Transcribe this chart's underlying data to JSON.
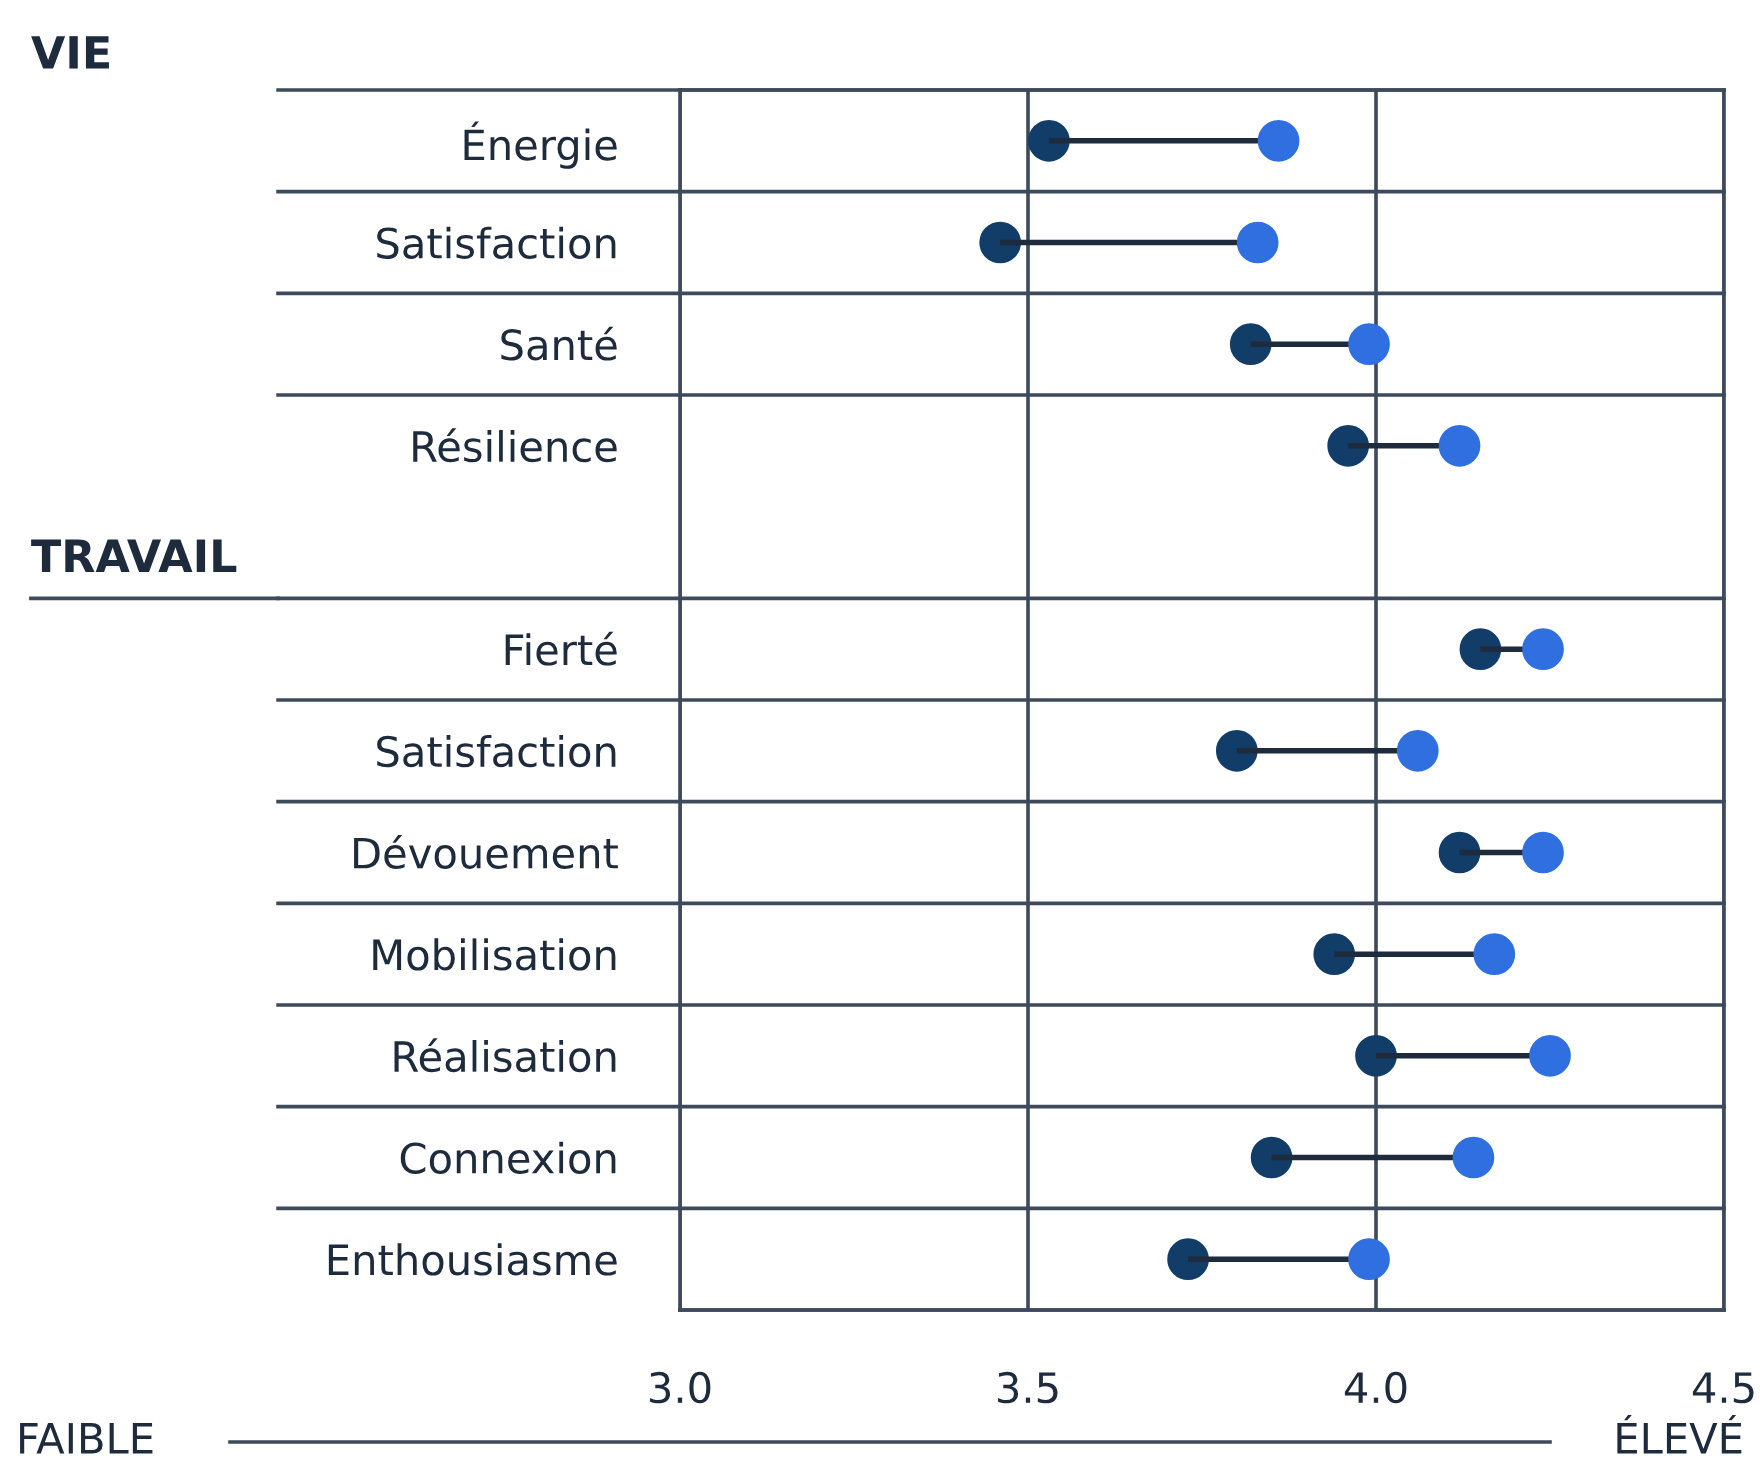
{
  "chart_data": {
    "type": "lollipop",
    "orientation": "horizontal",
    "categories": [
      "Énergie",
      "Satisfaction",
      "Santé",
      "Résilience",
      null,
      "Fierté",
      "Satisfaction",
      "Dévouement",
      "Mobilisation",
      "Réalisation",
      "Connexion",
      "Enthousiasme"
    ],
    "series": [
      {
        "type": "scatter",
        "color": "#123d68",
        "values": [
          3.53,
          3.46,
          3.82,
          3.96,
          null,
          4.15,
          3.8,
          4.12,
          3.94,
          4.0,
          3.85,
          3.73
        ]
      },
      {
        "color": "#2f6fe0",
        "values": [
          3.86,
          3.83,
          3.99,
          4.12,
          null,
          4.24,
          4.06,
          4.24,
          4.17,
          4.25,
          4.14,
          3.99
        ]
      }
    ],
    "xlim": [
      3.0,
      4.5
    ],
    "xticks": [
      {
        "value": 3.0,
        "label": "3.0"
      },
      {
        "value": 3.5,
        "label": "3.5"
      },
      {
        "value": 4.0,
        "label": "4.0"
      },
      {
        "value": 4.5,
        "label": "4.5"
      }
    ],
    "grid": "x",
    "marker": "circle",
    "annotations": [
      "VIE",
      "TRAVAIL",
      "FAIBLE",
      "ÉLEVÉ"
    ]
  }
}
